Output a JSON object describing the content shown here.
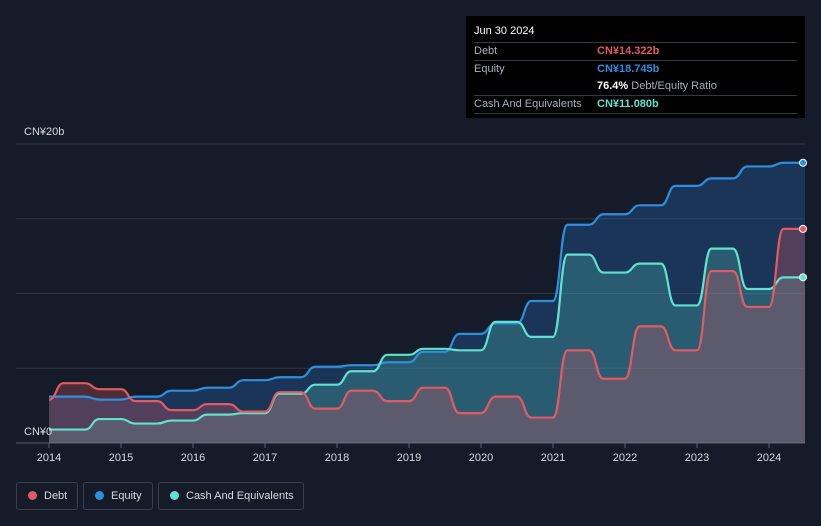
{
  "tooltip": {
    "date": "Jun 30 2024",
    "debt_label": "Debt",
    "debt_value": "CN¥14.322b",
    "equity_label": "Equity",
    "equity_value": "CN¥18.745b",
    "ratio_value": "76.4%",
    "ratio_label": "Debt/Equity Ratio",
    "cash_label": "Cash And Equivalents",
    "cash_value": "CN¥11.080b"
  },
  "legend": {
    "debt": "Debt",
    "equity": "Equity",
    "cash": "Cash And Equivalents"
  },
  "colors": {
    "debt": "#e25a63",
    "equity": "#2d8fe0",
    "cash": "#5fe2cf",
    "background": "#151b28"
  },
  "chart_data": {
    "type": "area",
    "ylim": [
      0,
      20
    ],
    "y_tick_labels": [
      "CN¥0",
      "CN¥20b"
    ],
    "x_ticks": [
      2014,
      2015,
      2016,
      2017,
      2018,
      2019,
      2020,
      2021,
      2022,
      2023,
      2024
    ],
    "x_tick_labels": [
      "2014",
      "2015",
      "2016",
      "2017",
      "2018",
      "2019",
      "2020",
      "2021",
      "2022",
      "2023",
      "2024"
    ],
    "grid": true,
    "legend_position": "bottom-left",
    "series": [
      {
        "name": "Debt",
        "points": [
          [
            2014.0,
            2.9
          ],
          [
            2014.2,
            4.0
          ],
          [
            2014.5,
            4.0
          ],
          [
            2014.7,
            3.6
          ],
          [
            2015.0,
            3.6
          ],
          [
            2015.2,
            2.8
          ],
          [
            2015.5,
            2.8
          ],
          [
            2015.7,
            2.2
          ],
          [
            2016.0,
            2.2
          ],
          [
            2016.2,
            2.6
          ],
          [
            2016.5,
            2.6
          ],
          [
            2016.7,
            2.1
          ],
          [
            2017.0,
            2.1
          ],
          [
            2017.2,
            3.4
          ],
          [
            2017.5,
            3.4
          ],
          [
            2017.7,
            2.3
          ],
          [
            2018.0,
            2.3
          ],
          [
            2018.2,
            3.5
          ],
          [
            2018.5,
            3.5
          ],
          [
            2018.7,
            2.8
          ],
          [
            2019.0,
            2.8
          ],
          [
            2019.2,
            3.7
          ],
          [
            2019.5,
            3.7
          ],
          [
            2019.7,
            2.0
          ],
          [
            2020.0,
            2.0
          ],
          [
            2020.2,
            3.1
          ],
          [
            2020.5,
            3.1
          ],
          [
            2020.7,
            1.7
          ],
          [
            2021.0,
            1.7
          ],
          [
            2021.2,
            6.2
          ],
          [
            2021.5,
            6.2
          ],
          [
            2021.7,
            4.3
          ],
          [
            2022.0,
            4.3
          ],
          [
            2022.2,
            7.8
          ],
          [
            2022.5,
            7.8
          ],
          [
            2022.7,
            6.2
          ],
          [
            2023.0,
            6.2
          ],
          [
            2023.2,
            11.5
          ],
          [
            2023.5,
            11.5
          ],
          [
            2023.7,
            9.1
          ],
          [
            2024.0,
            9.1
          ],
          [
            2024.2,
            14.322
          ],
          [
            2024.5,
            14.322
          ]
        ]
      },
      {
        "name": "Equity",
        "points": [
          [
            2014.0,
            3.1
          ],
          [
            2014.5,
            3.1
          ],
          [
            2014.7,
            2.9
          ],
          [
            2015.0,
            2.9
          ],
          [
            2015.2,
            3.1
          ],
          [
            2015.5,
            3.1
          ],
          [
            2015.7,
            3.5
          ],
          [
            2016.0,
            3.5
          ],
          [
            2016.2,
            3.7
          ],
          [
            2016.5,
            3.7
          ],
          [
            2016.7,
            4.2
          ],
          [
            2017.0,
            4.2
          ],
          [
            2017.2,
            4.4
          ],
          [
            2017.5,
            4.4
          ],
          [
            2017.7,
            5.1
          ],
          [
            2018.0,
            5.1
          ],
          [
            2018.2,
            5.2
          ],
          [
            2018.5,
            5.2
          ],
          [
            2018.7,
            5.4
          ],
          [
            2019.0,
            5.4
          ],
          [
            2019.2,
            6.1
          ],
          [
            2019.5,
            6.1
          ],
          [
            2019.7,
            7.3
          ],
          [
            2020.0,
            7.3
          ],
          [
            2020.2,
            8.0
          ],
          [
            2020.5,
            8.0
          ],
          [
            2020.7,
            9.5
          ],
          [
            2021.0,
            9.5
          ],
          [
            2021.2,
            14.6
          ],
          [
            2021.5,
            14.6
          ],
          [
            2021.7,
            15.3
          ],
          [
            2022.0,
            15.3
          ],
          [
            2022.2,
            15.9
          ],
          [
            2022.5,
            15.9
          ],
          [
            2022.7,
            17.2
          ],
          [
            2023.0,
            17.2
          ],
          [
            2023.2,
            17.7
          ],
          [
            2023.5,
            17.7
          ],
          [
            2023.7,
            18.5
          ],
          [
            2024.0,
            18.5
          ],
          [
            2024.2,
            18.745
          ],
          [
            2024.5,
            18.745
          ]
        ]
      },
      {
        "name": "Cash And Equivalents",
        "points": [
          [
            2014.0,
            0.9
          ],
          [
            2014.5,
            0.9
          ],
          [
            2014.7,
            1.6
          ],
          [
            2015.0,
            1.6
          ],
          [
            2015.2,
            1.3
          ],
          [
            2015.5,
            1.3
          ],
          [
            2015.7,
            1.5
          ],
          [
            2016.0,
            1.5
          ],
          [
            2016.2,
            1.9
          ],
          [
            2016.5,
            1.9
          ],
          [
            2016.7,
            2.0
          ],
          [
            2017.0,
            2.0
          ],
          [
            2017.2,
            3.3
          ],
          [
            2017.5,
            3.3
          ],
          [
            2017.7,
            3.9
          ],
          [
            2018.0,
            3.9
          ],
          [
            2018.2,
            4.8
          ],
          [
            2018.5,
            4.8
          ],
          [
            2018.7,
            5.9
          ],
          [
            2019.0,
            5.9
          ],
          [
            2019.2,
            6.3
          ],
          [
            2019.5,
            6.3
          ],
          [
            2019.7,
            6.2
          ],
          [
            2020.0,
            6.2
          ],
          [
            2020.2,
            8.1
          ],
          [
            2020.5,
            8.1
          ],
          [
            2020.7,
            7.1
          ],
          [
            2021.0,
            7.1
          ],
          [
            2021.2,
            12.6
          ],
          [
            2021.5,
            12.6
          ],
          [
            2021.7,
            11.4
          ],
          [
            2022.0,
            11.4
          ],
          [
            2022.2,
            12.0
          ],
          [
            2022.5,
            12.0
          ],
          [
            2022.7,
            9.2
          ],
          [
            2023.0,
            9.2
          ],
          [
            2023.2,
            13.0
          ],
          [
            2023.5,
            13.0
          ],
          [
            2023.7,
            10.3
          ],
          [
            2024.0,
            10.3
          ],
          [
            2024.2,
            11.08
          ],
          [
            2024.5,
            11.08
          ]
        ]
      }
    ]
  }
}
